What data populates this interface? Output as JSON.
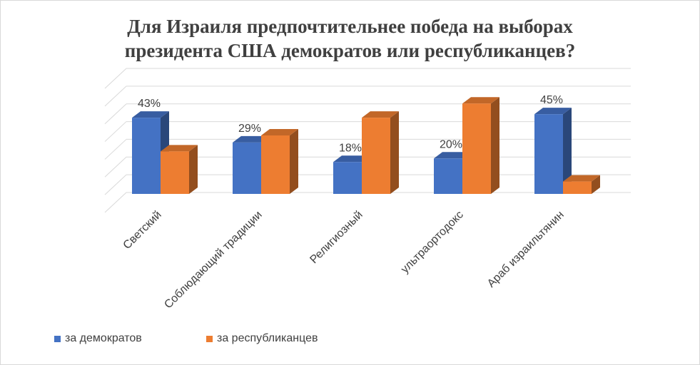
{
  "chart_data": {
    "type": "bar",
    "title": "Для Израиля предпочтительнее победа на выборах президента США демократов или республиканцев?",
    "title_lines": [
      "Для Израиля предпочтительнее победа на выборах",
      "президента США демократов или республиканцев?"
    ],
    "categories": [
      "Светский",
      "Соблюдающий традиции",
      "Религиозный",
      "ультраортодокс",
      "Араб израильтянин"
    ],
    "series": [
      {
        "name": "за демократов",
        "values": [
          43,
          29,
          18,
          20,
          45
        ],
        "color": "#4472c4",
        "labels": [
          "43%",
          "29%",
          "18%",
          "20%",
          "45%"
        ]
      },
      {
        "name": "за республиканцев",
        "values": [
          24,
          33,
          43,
          51,
          7
        ],
        "color": "#ed7d31"
      }
    ],
    "ylim": [
      0,
      70
    ],
    "grid": true,
    "legend": "bottom-left",
    "xlabel": "",
    "ylabel": ""
  }
}
